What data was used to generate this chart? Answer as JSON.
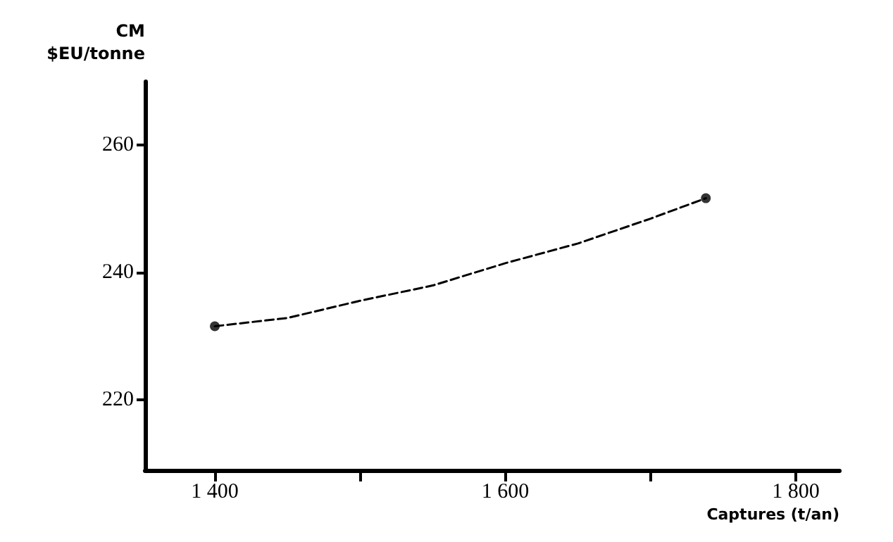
{
  "chart_data": {
    "type": "line",
    "xlabel": "Captures (t/an)",
    "ylabel": "CM\n$EU/tonne",
    "x": [
      1400,
      1450,
      1500,
      1550,
      1600,
      1650,
      1700,
      1738
    ],
    "series": [
      {
        "color": "#000000",
        "line_style": "dashed",
        "marker": "none",
        "values": [
          231.6,
          232.9,
          235.6,
          238.0,
          241.5,
          244.6,
          248.5,
          251.7
        ]
      },
      {
        "type": "scatter",
        "color": "#000000",
        "marker": "circle",
        "x": [
          1400,
          1738
        ],
        "values": [
          231.6,
          251.7
        ]
      }
    ],
    "xlim": [
      1352,
      1830
    ],
    "xticks": [
      {
        "value": 1400,
        "label": "1 400"
      },
      {
        "value": 1500,
        "label": null
      },
      {
        "value": 1600,
        "label": "1 600"
      },
      {
        "value": 1700,
        "label": null
      },
      {
        "value": 1800,
        "label": "1 800"
      }
    ],
    "ylim": [
      209,
      270
    ],
    "yticks": [
      220,
      240,
      260
    ],
    "grid": false
  }
}
